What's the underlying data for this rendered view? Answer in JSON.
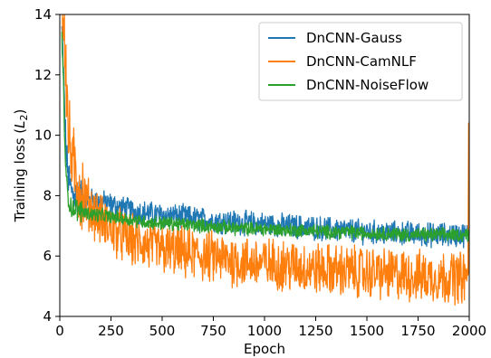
{
  "chart_data": {
    "type": "line",
    "title": "",
    "xlabel": "Epoch",
    "ylabel_prefix": "Training loss (",
    "ylabel_var": "L",
    "ylabel_sub": "2",
    "ylabel_suffix": ")",
    "xlim": [
      0,
      2000
    ],
    "ylim": [
      4,
      14
    ],
    "xticks": [
      0,
      250,
      500,
      750,
      1000,
      1250,
      1500,
      1750,
      2000
    ],
    "yticks": [
      4,
      6,
      8,
      10,
      12,
      14
    ],
    "grid": false,
    "legend_position": "top-right",
    "series": [
      {
        "name": "DnCNN-Gauss",
        "color": "#1f77b4",
        "x": [
          10,
          20,
          30,
          40,
          50,
          60,
          80,
          100,
          125,
          150,
          200,
          250,
          300,
          350,
          400,
          450,
          500,
          600,
          700,
          800,
          900,
          1000,
          1100,
          1200,
          1300,
          1400,
          1500,
          1600,
          1700,
          1800,
          1900,
          2000
        ],
        "y": [
          13.5,
          11.5,
          9.6,
          8.7,
          8.3,
          8.1,
          8.0,
          7.95,
          7.9,
          7.85,
          7.8,
          7.7,
          7.6,
          7.5,
          7.45,
          7.4,
          7.35,
          7.3,
          7.2,
          7.15,
          7.1,
          7.05,
          7.0,
          6.95,
          6.9,
          6.85,
          6.8,
          6.75,
          6.75,
          6.7,
          6.7,
          6.7
        ],
        "noise": 0.35
      },
      {
        "name": "DnCNN-CamNLF",
        "color": "#ff7f0e",
        "x": [
          10,
          20,
          30,
          40,
          50,
          60,
          80,
          100,
          125,
          150,
          200,
          250,
          300,
          350,
          400,
          450,
          500,
          600,
          700,
          800,
          900,
          1000,
          1100,
          1200,
          1300,
          1400,
          1500,
          1600,
          1700,
          1800,
          1900,
          1995
        ],
        "y": [
          14,
          14,
          12.2,
          10.3,
          9.6,
          9.1,
          8.6,
          8.2,
          7.9,
          7.6,
          7.2,
          6.9,
          6.7,
          6.5,
          6.4,
          6.3,
          6.2,
          6.1,
          6.0,
          5.9,
          5.8,
          5.75,
          5.7,
          5.6,
          5.55,
          5.5,
          5.45,
          5.4,
          5.35,
          5.3,
          5.3,
          5.3
        ],
        "noise": 0.75
      },
      {
        "name": "DnCNN-NoiseFlow",
        "color": "#2ca02c",
        "x": [
          10,
          20,
          30,
          40,
          50,
          60,
          80,
          100,
          125,
          150,
          200,
          250,
          300,
          350,
          400,
          450,
          500,
          600,
          700,
          800,
          900,
          1000,
          1100,
          1200,
          1300,
          1400,
          1500,
          1600,
          1700,
          1800,
          1900,
          2000
        ],
        "y": [
          13.5,
          11.0,
          8.6,
          8.0,
          7.7,
          7.6,
          7.55,
          7.5,
          7.45,
          7.4,
          7.35,
          7.3,
          7.25,
          7.2,
          7.15,
          7.1,
          7.1,
          7.05,
          7.0,
          6.95,
          6.9,
          6.9,
          6.85,
          6.85,
          6.8,
          6.8,
          6.75,
          6.75,
          6.7,
          6.7,
          6.7,
          6.7
        ],
        "noise": 0.2
      }
    ]
  }
}
